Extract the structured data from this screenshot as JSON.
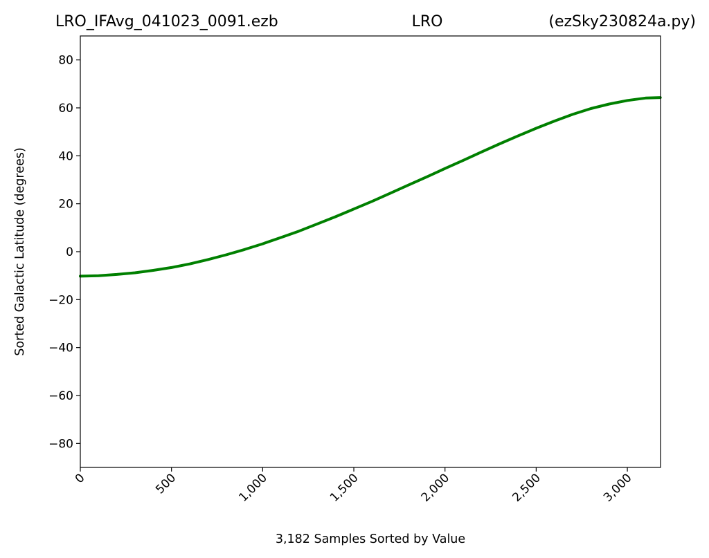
{
  "header": {
    "left": "LRO_IFAvg_041023_0091.ezb",
    "center": "LRO",
    "right": "(ezSky230824a.py)"
  },
  "chart_data": {
    "type": "line",
    "title": "",
    "xlabel": "3,182 Samples Sorted by Value",
    "ylabel": "Sorted Galactic Latitude (degrees)",
    "xlim": [
      0,
      3182
    ],
    "ylim": [
      -90,
      90
    ],
    "grid": false,
    "legend": "none",
    "xticks": [
      0,
      500,
      1000,
      1500,
      2000,
      2500,
      3000
    ],
    "xtick_labels": [
      "0",
      "500",
      "1,000",
      "1,500",
      "2,000",
      "2,500",
      "3,000"
    ],
    "yticks": [
      -80,
      -60,
      -40,
      -20,
      0,
      20,
      40,
      60,
      80
    ],
    "ytick_labels": [
      "−80",
      "−60",
      "−40",
      "−20",
      "0",
      "20",
      "40",
      "60",
      "80"
    ],
    "series": [
      {
        "color": "#008000",
        "x": [
          0,
          100,
          200,
          300,
          400,
          500,
          600,
          700,
          800,
          900,
          1000,
          1100,
          1200,
          1300,
          1400,
          1500,
          1600,
          1700,
          1800,
          1900,
          2000,
          2100,
          2200,
          2300,
          2400,
          2500,
          2600,
          2700,
          2800,
          2900,
          3000,
          3100,
          3181
        ],
        "y": [
          -10.2,
          -10.0,
          -9.5,
          -8.8,
          -7.8,
          -6.6,
          -5.1,
          -3.3,
          -1.3,
          0.9,
          3.3,
          5.9,
          8.6,
          11.6,
          14.6,
          17.8,
          21.0,
          24.4,
          27.8,
          31.2,
          34.7,
          38.1,
          41.6,
          45.0,
          48.3,
          51.5,
          54.5,
          57.3,
          59.7,
          61.6,
          63.1,
          64.1,
          64.3
        ]
      }
    ]
  }
}
